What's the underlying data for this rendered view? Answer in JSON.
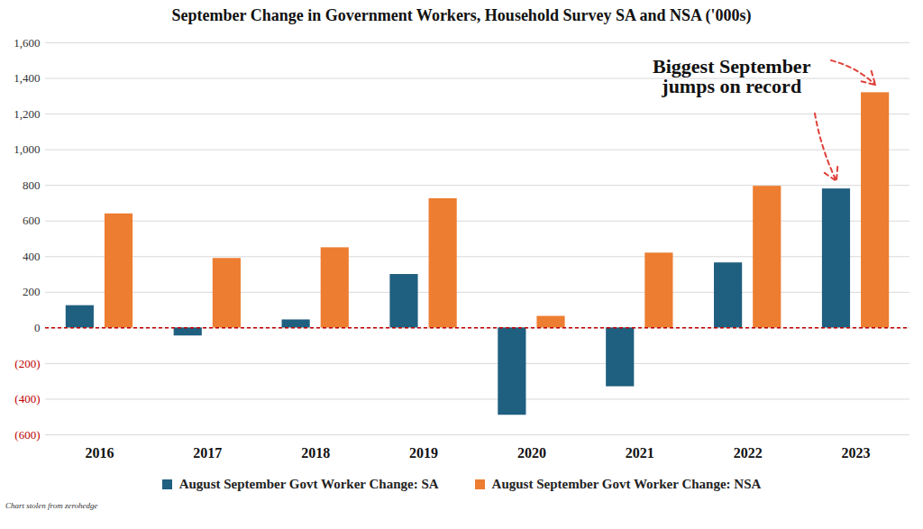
{
  "chart_data": {
    "type": "bar",
    "title": "September Change in Government Workers, Household Survey SA and NSA ('000s)",
    "categories": [
      "2016",
      "2017",
      "2018",
      "2019",
      "2020",
      "2021",
      "2022",
      "2023"
    ],
    "series": [
      {
        "name": "August September Govt Worker Change: SA",
        "color": "#1f5f80",
        "values": [
          125,
          -45,
          45,
          300,
          -490,
          -330,
          365,
          780
        ]
      },
      {
        "name": "August September Govt Worker Change: NSA",
        "color": "#ed7d31",
        "values": [
          640,
          390,
          450,
          725,
          65,
          420,
          795,
          1320
        ]
      }
    ],
    "ylim": [
      -600,
      1600
    ],
    "yticks": [
      {
        "value": -600,
        "label": "(600)"
      },
      {
        "value": -400,
        "label": "(400)"
      },
      {
        "value": -200,
        "label": "(200)"
      },
      0,
      200,
      400,
      600,
      800,
      {
        "value": 1000,
        "label": "1,000"
      },
      {
        "value": 1200,
        "label": "1,200"
      },
      {
        "value": 1400,
        "label": "1,400"
      },
      {
        "value": 1600,
        "label": "1,600"
      }
    ],
    "grid": true,
    "legend": "bottom",
    "annotation": "Biggest September\njumps on record",
    "caption": "Chart stolen from zerohedge"
  }
}
